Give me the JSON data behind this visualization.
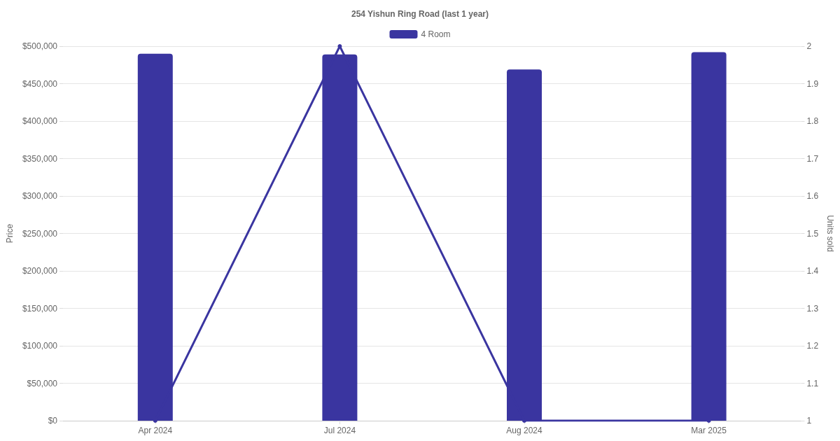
{
  "chart_data": {
    "type": "bar",
    "title": "254 Yishun Ring Road (last 1 year)",
    "ylabel": "Price",
    "y2label": "Units sold",
    "categories": [
      "Apr 2024",
      "Jul 2024",
      "Aug 2024",
      "Mar 2025"
    ],
    "series": [
      {
        "name": "4 Room",
        "color": "#3a35a0",
        "values": [
          490000,
          489000,
          469000,
          492000
        ]
      },
      {
        "type": "line",
        "axis": "y2",
        "color": "#3a35a0",
        "values": [
          1,
          2,
          1,
          1
        ]
      }
    ],
    "ylim": [
      0,
      500000
    ],
    "yticks": [
      {
        "value": 0,
        "label": "$0"
      },
      {
        "value": 50000,
        "label": "$50,000"
      },
      {
        "value": 100000,
        "label": "$100,000"
      },
      {
        "value": 150000,
        "label": "$150,000"
      },
      {
        "value": 200000,
        "label": "$200,000"
      },
      {
        "value": 250000,
        "label": "$250,000"
      },
      {
        "value": 300000,
        "label": "$300,000"
      },
      {
        "value": 350000,
        "label": "$350,000"
      },
      {
        "value": 400000,
        "label": "$400,000"
      },
      {
        "value": 450000,
        "label": "$450,000"
      },
      {
        "value": 500000,
        "label": "$500,000"
      }
    ],
    "y2lim": [
      1,
      2
    ],
    "y2ticks": [
      1,
      1.1,
      1.2,
      1.3,
      1.4,
      1.5,
      1.6,
      1.7,
      1.8,
      1.9,
      2
    ],
    "grid": "y",
    "legend": "top",
    "marker": "circle",
    "line_style": "solid"
  }
}
